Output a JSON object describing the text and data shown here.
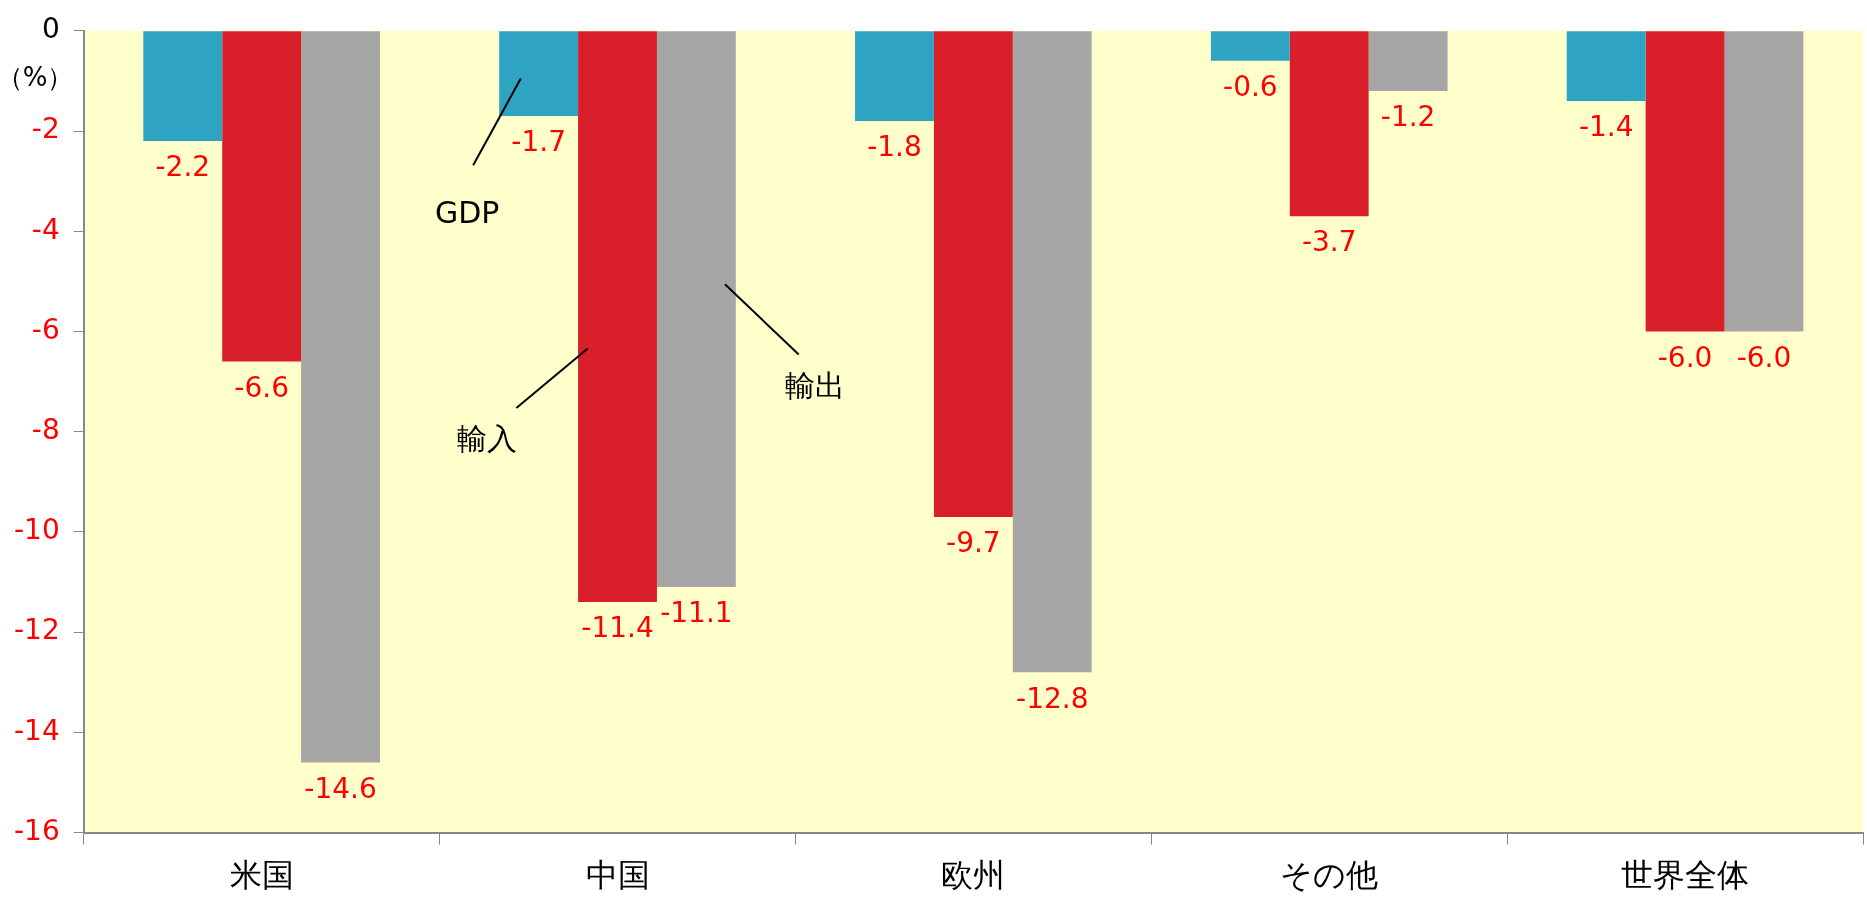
{
  "chart_data": {
    "type": "bar",
    "ylabel": "（%）",
    "categories": [
      "米国",
      "中国",
      "欧州",
      "その他",
      "世界全体"
    ],
    "series": [
      {
        "name": "GDP",
        "color": "#2ea3c2",
        "values": [
          -2.2,
          -1.7,
          -1.8,
          -0.6,
          -1.4
        ],
        "value_labels": [
          "-2.2",
          "-1.7",
          "-1.8",
          "-0.6",
          "-1.4"
        ]
      },
      {
        "name": "輸入",
        "color": "#d91f2a",
        "values": [
          -6.6,
          -11.4,
          -9.7,
          -3.7,
          -6.0
        ],
        "value_labels": [
          "-6.6",
          "-11.4",
          "-9.7",
          "-3.7",
          "-6.0"
        ]
      },
      {
        "name": "輸出",
        "color": "#a6a6a6",
        "values": [
          -14.6,
          -11.1,
          -12.8,
          -1.2,
          -6.0
        ],
        "value_labels": [
          "-14.6",
          "-11.1",
          "-12.8",
          "-1.2",
          "-6.0"
        ]
      }
    ],
    "ylim": [
      -16,
      0
    ],
    "yticks": [
      0,
      -2,
      -4,
      -6,
      -8,
      -10,
      -12,
      -14,
      -16
    ],
    "grid": false,
    "legend": false
  }
}
